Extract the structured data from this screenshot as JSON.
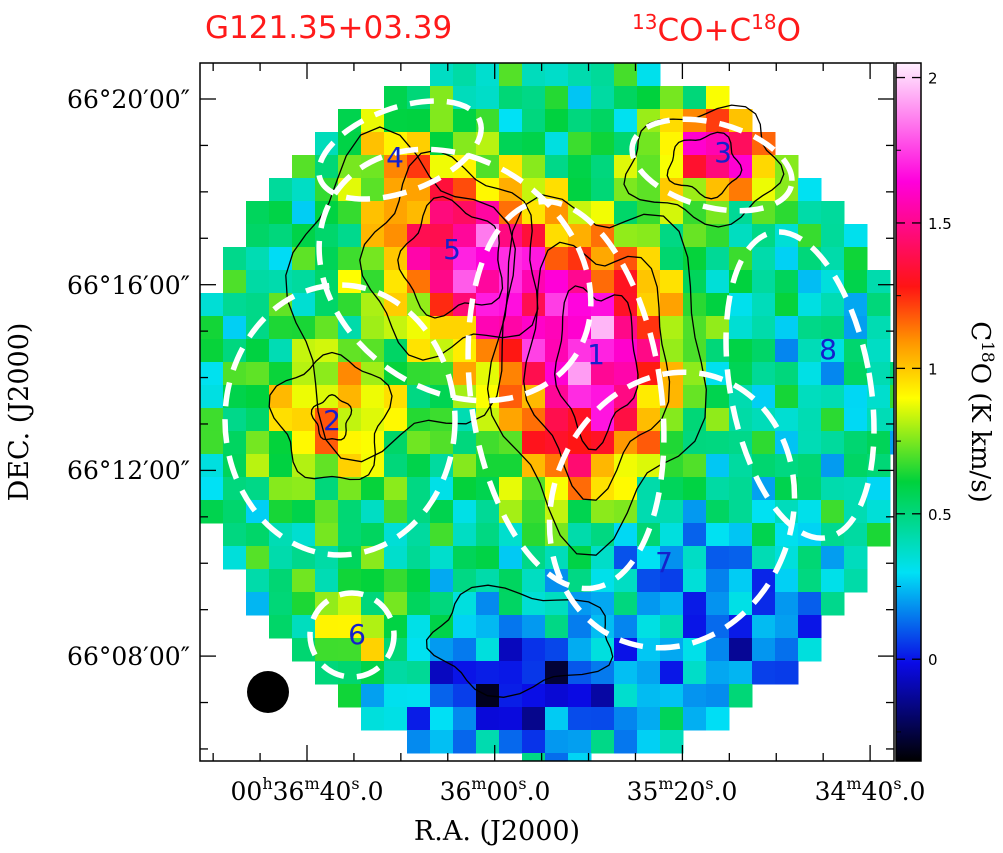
{
  "title_left": "G121.35+03.39",
  "title_right": {
    "pre": "13",
    "a": "CO+C",
    "sup2": "18",
    "b": "O"
  },
  "chart_data": {
    "type": "heatmap",
    "xlabel": "R.A. (J2000)",
    "ylabel": "DEC. (J2000)",
    "x_ticks": [
      {
        "h": "00",
        "m": "36",
        "s": "40.0",
        "show_h": true
      },
      {
        "m": "36",
        "s": "00.0"
      },
      {
        "m": "35",
        "s": "20.0"
      },
      {
        "m": "34",
        "s": "40.0"
      }
    ],
    "y_ticks": [
      "66°20′00″",
      "66°16′00″",
      "66°12′00″",
      "66°08′00″"
    ],
    "colorbar": {
      "label_pre": "C",
      "label_sup": "18",
      "label_post": "O (K km/s)",
      "range": [
        -0.35,
        2.05
      ],
      "ticks": [
        0,
        0.5,
        1,
        1.5,
        2
      ],
      "tick_labels": [
        "0",
        "0.5",
        "1",
        "1.5",
        "2"
      ]
    },
    "clumps": [
      "1",
      "2",
      "3",
      "4",
      "5",
      "6",
      "7",
      "8"
    ],
    "field": {
      "background": 0.45,
      "peaks": [
        {
          "id": "1",
          "value": 1.75
        },
        {
          "id": "2",
          "value": 1.05
        },
        {
          "id": "3",
          "value": 1.6
        },
        {
          "id": "4",
          "value": 0.85
        },
        {
          "id": "5",
          "value": 1.4
        },
        {
          "id": "6",
          "value": 0.9
        },
        {
          "id": "7",
          "value": 0.2
        },
        {
          "id": "8",
          "value": 0.35
        }
      ]
    }
  }
}
